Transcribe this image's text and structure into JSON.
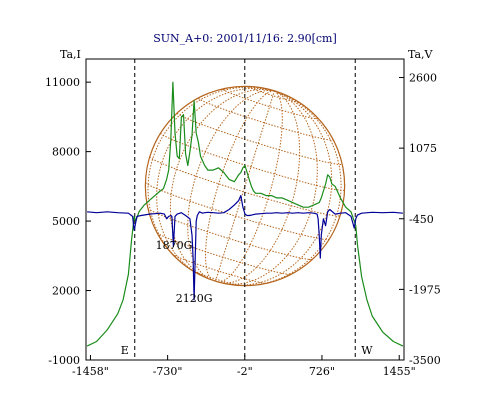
{
  "chart_data": {
    "type": "line",
    "title": "SUN_A+0: 2001/11/16: 2.90[cm]",
    "left_axis": {
      "label": "Ta,I",
      "ylim": [
        -1000,
        12000
      ],
      "ticks": [
        "11000",
        "8000",
        "5000",
        "2000",
        "-1000"
      ],
      "tick_values": [
        11000,
        8000,
        5000,
        2000,
        -1000
      ]
    },
    "right_axis": {
      "label": "Ta,V",
      "ylim": [
        -3500,
        3000
      ],
      "ticks": [
        "2600",
        "1075",
        "-450",
        "-1975",
        "-3500"
      ],
      "tick_values": [
        2600,
        1075,
        -450,
        -1975,
        -3500
      ]
    },
    "x_axis": {
      "xlim": [
        -1500,
        1500
      ],
      "ticks": [
        "-1458\"",
        "-730\"",
        "-2\"",
        "726\"",
        "1455\""
      ],
      "tick_values": [
        -1458,
        -730,
        -2,
        726,
        1455
      ]
    },
    "vertical_markers": [
      {
        "x": -1040,
        "label": "E"
      },
      {
        "x": -2,
        "label": ""
      },
      {
        "x": 1040,
        "label": "W"
      }
    ],
    "annotations": [
      {
        "text": "1870G",
        "x": -670,
        "y": 3800
      },
      {
        "text": "2120G",
        "x": -480,
        "y": 1500
      }
    ],
    "solar_disk_radius_arcsec": 940,
    "colors": {
      "intensity": "#1a8c1a",
      "polarization": "#000098",
      "disk": "#b5651d",
      "title": "#000070"
    },
    "series": [
      {
        "axis": "left",
        "x": [
          -1490,
          -1400,
          -1300,
          -1200,
          -1150,
          -1100,
          -1070,
          -1045,
          -1030,
          -1000,
          -950,
          -900,
          -850,
          -800,
          -770,
          -740,
          -720,
          -700,
          -680,
          -660,
          -640,
          -620,
          -600,
          -580,
          -560,
          -540,
          -520,
          -500,
          -480,
          -460,
          -440,
          -420,
          -400,
          -380,
          -350,
          -300,
          -250,
          -200,
          -150,
          -100,
          -60,
          -40,
          -20,
          0,
          20,
          40,
          60,
          80,
          100,
          150,
          200,
          250,
          300,
          350,
          400,
          450,
          500,
          550,
          600,
          650,
          700,
          720,
          740,
          760,
          780,
          800,
          820,
          850,
          900,
          950,
          1000,
          1030,
          1045,
          1060,
          1100,
          1150,
          1200,
          1300,
          1400,
          1490
        ],
        "y": [
          -400,
          -200,
          300,
          1000,
          1600,
          2700,
          4200,
          5200,
          5000,
          5400,
          5700,
          5900,
          6100,
          6300,
          6400,
          6800,
          7200,
          8500,
          11000,
          8800,
          7800,
          7700,
          9500,
          9600,
          7900,
          7400,
          8000,
          8700,
          10200,
          8800,
          8400,
          7800,
          7600,
          7400,
          7200,
          7200,
          7300,
          7100,
          6800,
          6700,
          7000,
          7100,
          7300,
          7400,
          7100,
          6800,
          6500,
          6300,
          6200,
          6200,
          6100,
          6100,
          6000,
          6000,
          5900,
          5800,
          5700,
          5600,
          5600,
          5700,
          5800,
          6000,
          6300,
          6600,
          7000,
          6900,
          6600,
          6500,
          6000,
          5600,
          5400,
          5000,
          4800,
          4000,
          2600,
          1600,
          900,
          200,
          -200,
          -400
        ]
      },
      {
        "axis": "right",
        "x": [
          -1490,
          -1400,
          -1300,
          -1200,
          -1100,
          -1060,
          -1045,
          -1020,
          -980,
          -900,
          -850,
          -800,
          -760,
          -740,
          -720,
          -700,
          -690,
          -675,
          -660,
          -640,
          -600,
          -560,
          -520,
          -500,
          -490,
          -480,
          -470,
          -460,
          -450,
          -430,
          -400,
          -380,
          -350,
          -300,
          -250,
          -200,
          -150,
          -100,
          -60,
          -40,
          -20,
          0,
          20,
          40,
          60,
          100,
          150,
          200,
          250,
          300,
          350,
          400,
          450,
          500,
          550,
          600,
          650,
          680,
          690,
          700,
          710,
          720,
          740,
          760,
          780,
          800,
          850,
          900,
          950,
          1000,
          1030,
          1045,
          1060,
          1100,
          1200,
          1300,
          1400,
          1490
        ],
        "y": [
          -300,
          -320,
          -300,
          -320,
          -330,
          -400,
          -700,
          -400,
          -380,
          -350,
          -340,
          -330,
          -350,
          -450,
          -400,
          -380,
          -400,
          -1050,
          -400,
          -350,
          -320,
          -380,
          -450,
          -800,
          -1300,
          -2200,
          -1300,
          -500,
          -380,
          -300,
          -330,
          -320,
          -310,
          -320,
          -330,
          -320,
          -250,
          -150,
          -60,
          50,
          -200,
          -350,
          -380,
          -380,
          -370,
          -350,
          -340,
          -330,
          -330,
          -320,
          -330,
          -320,
          -330,
          -320,
          -330,
          -320,
          -330,
          -350,
          -450,
          -800,
          -1300,
          -800,
          -450,
          -600,
          -300,
          -250,
          -350,
          -330,
          -320,
          -400,
          -650,
          -450,
          -370,
          -330,
          -310,
          -320,
          -310,
          -330
        ]
      }
    ]
  }
}
